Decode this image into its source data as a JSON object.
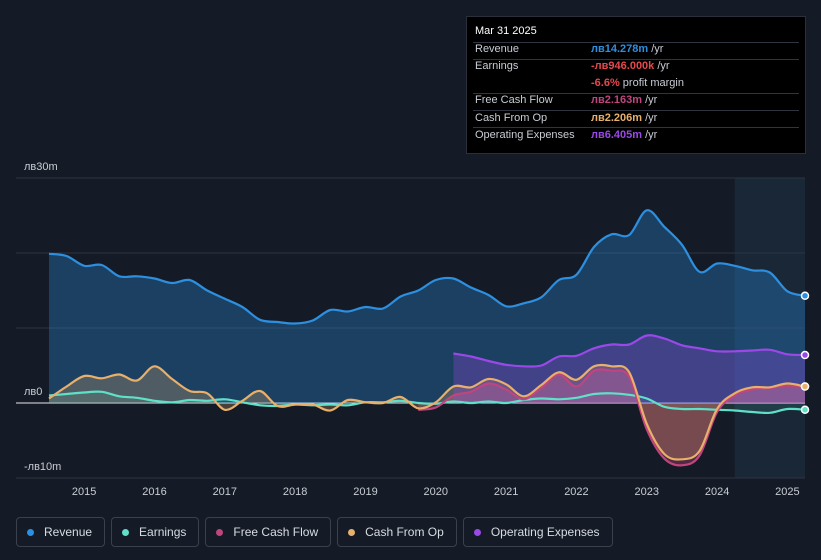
{
  "tooltip": {
    "date": "Mar 31 2025",
    "rows": [
      {
        "label": "Revenue",
        "value": "лв14.278m",
        "suffix": " /yr",
        "color": "#2d8fe0"
      },
      {
        "label": "Earnings",
        "value": "-лв946.000k",
        "suffix": " /yr",
        "color": "#e5484d"
      },
      {
        "label": "",
        "value": "-6.6%",
        "suffix": " profit margin",
        "color": "#e5484d"
      },
      {
        "label": "Free Cash Flow",
        "value": "лв2.163m",
        "suffix": " /yr",
        "color": "#c0457e"
      },
      {
        "label": "Cash From Op",
        "value": "лв2.206m",
        "suffix": " /yr",
        "color": "#e8b06a"
      },
      {
        "label": "Operating Expenses",
        "value": "лв6.405m",
        "suffix": " /yr",
        "color": "#9b48e8"
      }
    ]
  },
  "legend": [
    {
      "name": "revenue",
      "label": "Revenue",
      "color": "#2d8fe0"
    },
    {
      "name": "earnings",
      "label": "Earnings",
      "color": "#5fe0c8"
    },
    {
      "name": "free-cash-flow",
      "label": "Free Cash Flow",
      "color": "#c0457e"
    },
    {
      "name": "cash-from-op",
      "label": "Cash From Op",
      "color": "#e8b06a"
    },
    {
      "name": "operating-expenses",
      "label": "Operating Expenses",
      "color": "#9b48e8"
    }
  ],
  "chart_data": {
    "type": "area",
    "title": "",
    "xlabel": "",
    "ylabel": "",
    "ylim": [
      -10,
      30
    ],
    "y_ticks": [
      {
        "label": "лв30m",
        "value": 30
      },
      {
        "label": "лв0",
        "value": 0
      },
      {
        "label": "-лв10m",
        "value": -10
      }
    ],
    "x_ticks": [
      "2015",
      "2016",
      "2017",
      "2018",
      "2019",
      "2020",
      "2021",
      "2022",
      "2023",
      "2024",
      "2025"
    ],
    "x_range": [
      2014.5,
      2025.25
    ],
    "highlight_start": 2024.25,
    "series": [
      {
        "name": "Revenue",
        "color": "#2d8fe0",
        "points": [
          [
            2014.5,
            19.9
          ],
          [
            2014.75,
            19.6
          ],
          [
            2015.0,
            18.3
          ],
          [
            2015.25,
            18.4
          ],
          [
            2015.5,
            16.9
          ],
          [
            2015.75,
            16.9
          ],
          [
            2016.0,
            16.6
          ],
          [
            2016.25,
            16.0
          ],
          [
            2016.5,
            16.4
          ],
          [
            2016.75,
            15.0
          ],
          [
            2017.0,
            13.9
          ],
          [
            2017.25,
            12.8
          ],
          [
            2017.5,
            11.1
          ],
          [
            2017.75,
            10.8
          ],
          [
            2018.0,
            10.6
          ],
          [
            2018.25,
            11.0
          ],
          [
            2018.5,
            12.4
          ],
          [
            2018.75,
            12.2
          ],
          [
            2019.0,
            12.8
          ],
          [
            2019.25,
            12.6
          ],
          [
            2019.5,
            14.2
          ],
          [
            2019.75,
            15.0
          ],
          [
            2020.0,
            16.4
          ],
          [
            2020.25,
            16.6
          ],
          [
            2020.5,
            15.4
          ],
          [
            2020.75,
            14.4
          ],
          [
            2021.0,
            12.9
          ],
          [
            2021.25,
            13.3
          ],
          [
            2021.5,
            14.1
          ],
          [
            2021.75,
            16.4
          ],
          [
            2022.0,
            17.1
          ],
          [
            2022.25,
            20.8
          ],
          [
            2022.5,
            22.5
          ],
          [
            2022.75,
            22.4
          ],
          [
            2023.0,
            25.7
          ],
          [
            2023.25,
            23.5
          ],
          [
            2023.5,
            21.1
          ],
          [
            2023.75,
            17.5
          ],
          [
            2024.0,
            18.6
          ],
          [
            2024.25,
            18.3
          ],
          [
            2024.5,
            17.7
          ],
          [
            2024.75,
            17.4
          ],
          [
            2025.0,
            14.9
          ],
          [
            2025.25,
            14.3
          ]
        ]
      },
      {
        "name": "Earnings",
        "color": "#5fe0c8",
        "points": [
          [
            2014.5,
            1.0
          ],
          [
            2014.75,
            1.2
          ],
          [
            2015.0,
            1.4
          ],
          [
            2015.25,
            1.5
          ],
          [
            2015.5,
            0.9
          ],
          [
            2015.75,
            0.7
          ],
          [
            2016.0,
            0.3
          ],
          [
            2016.25,
            0.1
          ],
          [
            2016.5,
            0.4
          ],
          [
            2016.75,
            0.3
          ],
          [
            2017.0,
            0.5
          ],
          [
            2017.25,
            0.1
          ],
          [
            2017.5,
            -0.3
          ],
          [
            2017.75,
            -0.4
          ],
          [
            2018.0,
            -0.2
          ],
          [
            2018.25,
            -0.3
          ],
          [
            2018.5,
            -0.2
          ],
          [
            2018.75,
            -0.3
          ],
          [
            2019.0,
            0.1
          ],
          [
            2019.25,
            0.1
          ],
          [
            2019.5,
            0.3
          ],
          [
            2019.75,
            0.0
          ],
          [
            2020.0,
            -0.1
          ],
          [
            2020.25,
            0.2
          ],
          [
            2020.5,
            0.0
          ],
          [
            2020.75,
            0.2
          ],
          [
            2021.0,
            0.0
          ],
          [
            2021.25,
            0.4
          ],
          [
            2021.5,
            0.6
          ],
          [
            2021.75,
            0.5
          ],
          [
            2022.0,
            0.7
          ],
          [
            2022.25,
            1.2
          ],
          [
            2022.5,
            1.3
          ],
          [
            2022.75,
            1.1
          ],
          [
            2023.0,
            0.6
          ],
          [
            2023.25,
            -0.5
          ],
          [
            2023.5,
            -0.8
          ],
          [
            2023.75,
            -0.8
          ],
          [
            2024.0,
            -0.9
          ],
          [
            2024.25,
            -1.0
          ],
          [
            2024.5,
            -1.2
          ],
          [
            2024.75,
            -1.3
          ],
          [
            2025.0,
            -0.8
          ],
          [
            2025.25,
            -0.9
          ]
        ]
      },
      {
        "name": "Free Cash Flow",
        "color": "#c0457e",
        "points": [
          [
            2019.75,
            -0.9
          ],
          [
            2020.0,
            -0.6
          ],
          [
            2020.25,
            1.0
          ],
          [
            2020.5,
            1.5
          ],
          [
            2020.75,
            2.6
          ],
          [
            2021.0,
            1.8
          ],
          [
            2021.25,
            0.5
          ],
          [
            2021.5,
            2.0
          ],
          [
            2021.75,
            3.8
          ],
          [
            2022.0,
            2.2
          ],
          [
            2022.25,
            4.3
          ],
          [
            2022.5,
            4.3
          ],
          [
            2022.75,
            3.5
          ],
          [
            2023.0,
            -3.5
          ],
          [
            2023.25,
            -7.4
          ],
          [
            2023.5,
            -8.3
          ],
          [
            2023.75,
            -7.0
          ],
          [
            2024.0,
            -1.2
          ],
          [
            2024.25,
            1.0
          ],
          [
            2024.5,
            1.8
          ],
          [
            2024.75,
            2.0
          ],
          [
            2025.0,
            2.3
          ],
          [
            2025.25,
            2.2
          ]
        ]
      },
      {
        "name": "Cash From Op",
        "color": "#e8b06a",
        "points": [
          [
            2014.5,
            0.6
          ],
          [
            2014.75,
            2.2
          ],
          [
            2015.0,
            3.6
          ],
          [
            2015.25,
            3.3
          ],
          [
            2015.5,
            3.8
          ],
          [
            2015.75,
            3.0
          ],
          [
            2016.0,
            4.9
          ],
          [
            2016.25,
            3.2
          ],
          [
            2016.5,
            1.6
          ],
          [
            2016.75,
            1.3
          ],
          [
            2017.0,
            -0.9
          ],
          [
            2017.25,
            0.3
          ],
          [
            2017.5,
            1.6
          ],
          [
            2017.75,
            -0.4
          ],
          [
            2018.0,
            -0.2
          ],
          [
            2018.25,
            -0.2
          ],
          [
            2018.5,
            -1.0
          ],
          [
            2018.75,
            0.4
          ],
          [
            2019.0,
            0.1
          ],
          [
            2019.25,
            0.0
          ],
          [
            2019.5,
            0.8
          ],
          [
            2019.75,
            -0.7
          ],
          [
            2020.0,
            0.1
          ],
          [
            2020.25,
            2.2
          ],
          [
            2020.5,
            2.1
          ],
          [
            2020.75,
            3.2
          ],
          [
            2021.0,
            2.5
          ],
          [
            2021.25,
            0.9
          ],
          [
            2021.5,
            2.4
          ],
          [
            2021.75,
            4.1
          ],
          [
            2022.0,
            3.1
          ],
          [
            2022.25,
            4.9
          ],
          [
            2022.5,
            4.9
          ],
          [
            2022.75,
            4.1
          ],
          [
            2023.0,
            -2.8
          ],
          [
            2023.25,
            -6.8
          ],
          [
            2023.5,
            -7.5
          ],
          [
            2023.75,
            -6.4
          ],
          [
            2024.0,
            -0.8
          ],
          [
            2024.25,
            1.3
          ],
          [
            2024.5,
            2.1
          ],
          [
            2024.75,
            2.1
          ],
          [
            2025.0,
            2.6
          ],
          [
            2025.25,
            2.2
          ]
        ]
      },
      {
        "name": "Operating Expenses",
        "color": "#9b48e8",
        "points": [
          [
            2020.25,
            6.6
          ],
          [
            2020.5,
            6.2
          ],
          [
            2020.75,
            5.6
          ],
          [
            2021.0,
            5.1
          ],
          [
            2021.25,
            4.9
          ],
          [
            2021.5,
            5.0
          ],
          [
            2021.75,
            6.2
          ],
          [
            2022.0,
            6.3
          ],
          [
            2022.25,
            7.3
          ],
          [
            2022.5,
            7.8
          ],
          [
            2022.75,
            7.8
          ],
          [
            2023.0,
            9.0
          ],
          [
            2023.25,
            8.6
          ],
          [
            2023.5,
            7.7
          ],
          [
            2023.75,
            7.3
          ],
          [
            2024.0,
            6.9
          ],
          [
            2024.25,
            6.9
          ],
          [
            2024.5,
            7.0
          ],
          [
            2024.75,
            7.1
          ],
          [
            2025.0,
            6.5
          ],
          [
            2025.25,
            6.4
          ]
        ]
      }
    ]
  }
}
